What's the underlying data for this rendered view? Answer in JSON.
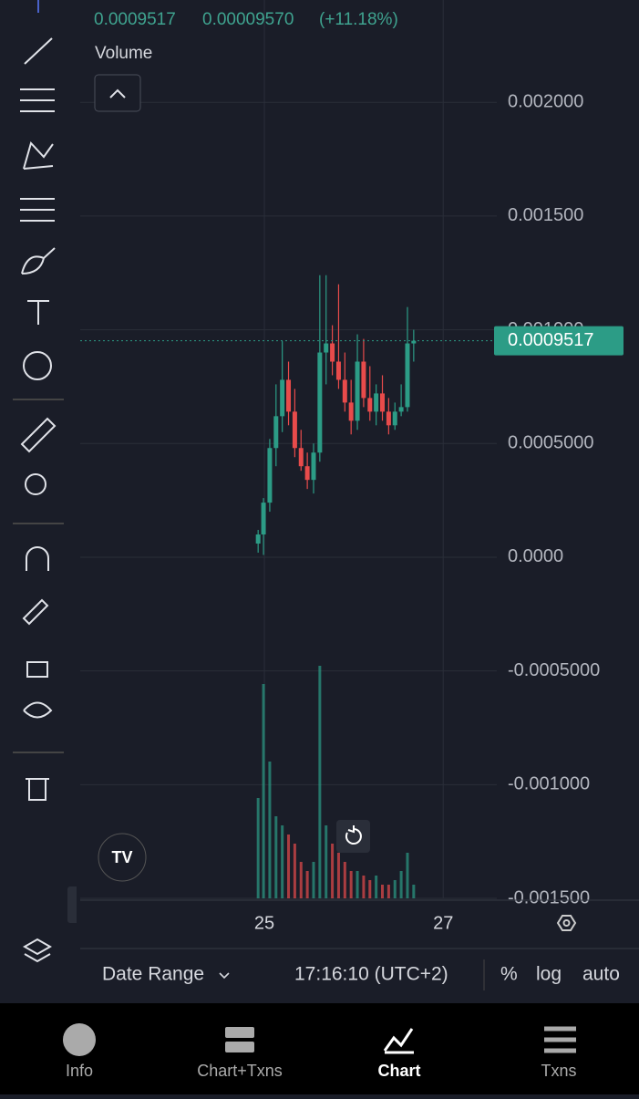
{
  "header": {
    "price": "0.0009517",
    "change": "0.00009570",
    "change_pct": "(+11.18%)",
    "pane_label": "Volume"
  },
  "chart_data": {
    "type": "candlestick",
    "x": [
      24.93,
      24.99,
      25.06,
      25.13,
      25.2,
      25.27,
      25.34,
      25.41,
      25.48,
      25.55,
      25.62,
      25.69,
      25.76,
      25.83,
      25.9,
      25.97,
      26.04,
      26.11,
      26.18,
      26.25,
      26.32,
      26.39,
      26.46,
      26.53,
      26.6,
      26.67
    ],
    "open": [
      6e-05,
      0.0001,
      0.00024,
      0.00048,
      0.00062,
      0.00078,
      0.00064,
      0.00048,
      0.0004,
      0.00034,
      0.00046,
      0.0009,
      0.00094,
      0.00086,
      0.00078,
      0.00068,
      0.0006,
      0.00086,
      0.0007,
      0.00064,
      0.00072,
      0.00064,
      0.00058,
      0.00064,
      0.00066,
      0.00094
    ],
    "high": [
      0.00012,
      0.00026,
      0.00052,
      0.00076,
      0.00095,
      0.00086,
      0.00074,
      0.00056,
      0.00046,
      0.0005,
      0.00124,
      0.00124,
      0.00102,
      0.0012,
      0.0009,
      0.00078,
      0.00098,
      0.00096,
      0.00084,
      0.00076,
      0.0008,
      0.0007,
      0.00068,
      0.00076,
      0.0011,
      0.001
    ],
    "low": [
      2e-05,
      1e-05,
      0.0002,
      0.0004,
      0.00055,
      0.00058,
      0.00044,
      0.00038,
      0.0003,
      0.00028,
      0.00042,
      0.00076,
      0.0008,
      0.00074,
      0.00064,
      0.00054,
      0.00056,
      0.00066,
      0.0006,
      0.00058,
      0.0006,
      0.00054,
      0.00056,
      0.00062,
      0.00064,
      0.00086
    ],
    "close": [
      0.0001,
      0.00024,
      0.00048,
      0.00062,
      0.00078,
      0.00064,
      0.00048,
      0.0004,
      0.00034,
      0.00046,
      0.0009,
      0.00094,
      0.00086,
      0.00078,
      0.00068,
      0.0006,
      0.00086,
      0.0007,
      0.00064,
      0.00072,
      0.00064,
      0.00058,
      0.00064,
      0.00066,
      0.00094,
      0.0009517
    ],
    "volume": [
      110,
      235,
      150,
      90,
      80,
      70,
      60,
      40,
      30,
      40,
      255,
      80,
      60,
      50,
      40,
      30,
      30,
      25,
      20,
      25,
      15,
      15,
      20,
      30,
      50,
      15
    ],
    "up_color": "#2c9c86",
    "down_color": "#e84b4b",
    "last_price": 0.0009517,
    "xlim": [
      22.94,
      29.19
    ],
    "xticks": [
      25,
      27
    ],
    "ylim": [
      -0.0015,
      0.00245
    ],
    "yticks": [
      {
        "value": 0.002,
        "label": "0.002000"
      },
      {
        "value": 0.0015,
        "label": "0.001500"
      },
      {
        "value": 0.001,
        "label": "0.001000"
      },
      {
        "value": 0.0005,
        "label": "0.0005000"
      },
      {
        "value": 0,
        "label": "0.0000"
      },
      {
        "value": -0.0005,
        "label": "-0.0005000"
      },
      {
        "value": -0.001,
        "label": "-0.001000"
      },
      {
        "value": -0.0015,
        "label": "-0.001500"
      }
    ],
    "grid": true
  },
  "footer": {
    "date_range": "Date Range",
    "time": "17:16:10 (UTC+2)",
    "percent": "%",
    "log": "log",
    "auto": "auto"
  },
  "tabs": [
    "Info",
    "Chart+Txns",
    "Chart",
    "Txns"
  ]
}
